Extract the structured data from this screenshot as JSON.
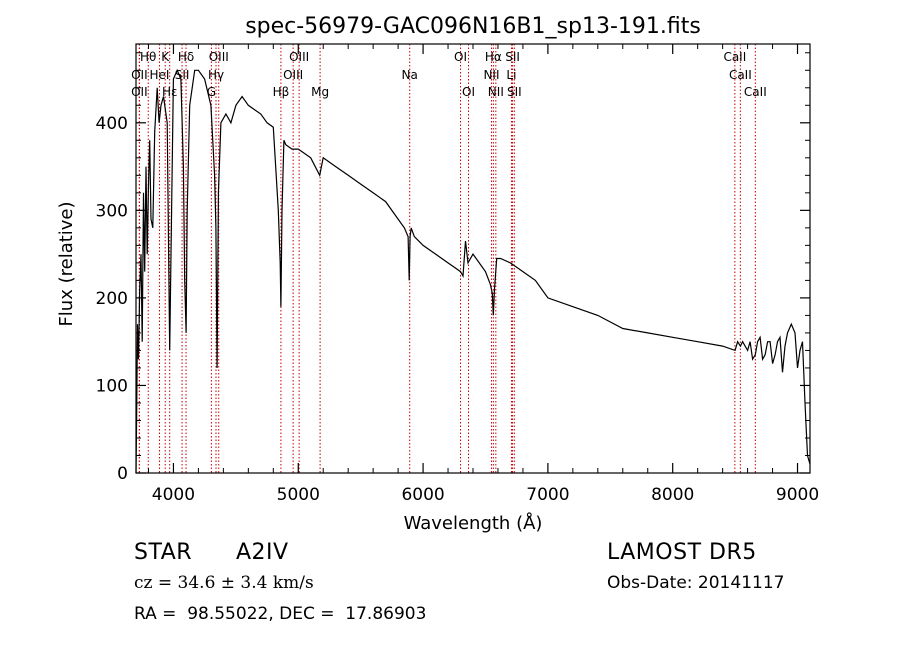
{
  "chart_data": {
    "type": "line",
    "title": "spec-56979-GAC096N16B1_sp13-191.fits",
    "xlabel": "Wavelength (Å)",
    "ylabel": "Flux (relative)",
    "xlim": [
      3700,
      9100
    ],
    "ylim": [
      0,
      490
    ],
    "x_ticks": [
      4000,
      5000,
      6000,
      7000,
      8000,
      9000
    ],
    "x_tick_labels": [
      "4000",
      "5000",
      "6000",
      "7000",
      "8000",
      "9000"
    ],
    "y_ticks": [
      0,
      100,
      200,
      300,
      400
    ],
    "y_tick_labels": [
      "0",
      "100",
      "200",
      "300",
      "400"
    ],
    "grid": false,
    "series": [
      {
        "x": [
          3700,
          3705,
          3712,
          3720,
          3730,
          3740,
          3750,
          3760,
          3770,
          3780,
          3790,
          3800,
          3810,
          3820,
          3835,
          3850,
          3870,
          3885,
          3900,
          3920,
          3950,
          3970,
          3985,
          4000,
          4030,
          4060,
          4080,
          4090,
          4101,
          4110,
          4130,
          4170,
          4200,
          4250,
          4300,
          4330,
          4340,
          4350,
          4360,
          4380,
          4420,
          4460,
          4500,
          4550,
          4600,
          4650,
          4700,
          4750,
          4800,
          4840,
          4855,
          4861,
          4870,
          4885,
          4900,
          4950,
          5000,
          5100,
          5172,
          5200,
          5300,
          5400,
          5500,
          5600,
          5700,
          5800,
          5850,
          5880,
          5889,
          5896,
          5905,
          5930,
          6000,
          6100,
          6200,
          6300,
          6320,
          6340,
          6360,
          6400,
          6500,
          6540,
          6555,
          6563,
          6572,
          6590,
          6620,
          6700,
          6800,
          6900,
          7000,
          7200,
          7400,
          7600,
          7800,
          8000,
          8200,
          8400,
          8500,
          8520,
          8542,
          8560,
          8600,
          8620,
          8640,
          8662,
          8680,
          8700,
          8720,
          8740,
          8760,
          8780,
          8800,
          8820,
          8840,
          8860,
          8880,
          8900,
          8920,
          8950,
          8980,
          9000,
          9020,
          9040,
          9060,
          9080,
          9100
        ],
        "y": [
          0,
          60,
          170,
          130,
          210,
          250,
          150,
          320,
          230,
          350,
          250,
          330,
          380,
          290,
          280,
          390,
          440,
          400,
          420,
          430,
          400,
          140,
          300,
          450,
          460,
          450,
          350,
          220,
          160,
          300,
          420,
          460,
          460,
          450,
          420,
          340,
          280,
          120,
          320,
          400,
          410,
          400,
          420,
          430,
          420,
          415,
          410,
          400,
          395,
          300,
          240,
          190,
          300,
          380,
          375,
          370,
          370,
          360,
          340,
          360,
          350,
          340,
          330,
          320,
          310,
          290,
          280,
          270,
          220,
          270,
          280,
          270,
          260,
          250,
          240,
          230,
          225,
          265,
          240,
          250,
          230,
          215,
          205,
          180,
          210,
          245,
          245,
          240,
          230,
          220,
          200,
          190,
          180,
          165,
          160,
          155,
          150,
          145,
          140,
          150,
          145,
          150,
          140,
          150,
          130,
          135,
          150,
          155,
          130,
          135,
          150,
          150,
          125,
          135,
          150,
          155,
          115,
          145,
          160,
          170,
          160,
          120,
          140,
          150,
          80,
          20,
          10
        ]
      }
    ],
    "line_markers": [
      {
        "label": "Hθ",
        "wavelength": 3798,
        "row": 0
      },
      {
        "label": "K",
        "wavelength": 3934,
        "row": 0
      },
      {
        "label": "Hδ",
        "wavelength": 4101,
        "row": 0
      },
      {
        "label": "OIII",
        "wavelength": 4363,
        "row": 0
      },
      {
        "label": "OIII",
        "wavelength": 5007,
        "row": 0
      },
      {
        "label": "OI",
        "wavelength": 6300,
        "row": 0
      },
      {
        "label": "Hα",
        "wavelength": 6563,
        "row": 0
      },
      {
        "label": "SII",
        "wavelength": 6717,
        "row": 0
      },
      {
        "label": "CaII",
        "wavelength": 8498,
        "row": 0
      },
      {
        "label": "OII",
        "wavelength": 3727,
        "row": 1
      },
      {
        "label": "HeI",
        "wavelength": 3888,
        "row": 1
      },
      {
        "label": "SII",
        "wavelength": 4069,
        "row": 1
      },
      {
        "label": "Hγ",
        "wavelength": 4341,
        "row": 1
      },
      {
        "label": "OIII",
        "wavelength": 4959,
        "row": 1
      },
      {
        "label": "Na",
        "wavelength": 5893,
        "row": 1
      },
      {
        "label": "NII",
        "wavelength": 6548,
        "row": 1
      },
      {
        "label": "Li",
        "wavelength": 6708,
        "row": 1
      },
      {
        "label": "CaII",
        "wavelength": 8542,
        "row": 1
      },
      {
        "label": "OII",
        "wavelength": 3727,
        "row": 2
      },
      {
        "label": "Hε",
        "wavelength": 3970,
        "row": 2
      },
      {
        "label": "G",
        "wavelength": 4304,
        "row": 2
      },
      {
        "label": "Hβ",
        "wavelength": 4861,
        "row": 2
      },
      {
        "label": "Mg",
        "wavelength": 5175,
        "row": 2
      },
      {
        "label": "OI",
        "wavelength": 6364,
        "row": 2
      },
      {
        "label": "NII",
        "wavelength": 6583,
        "row": 2
      },
      {
        "label": "SII",
        "wavelength": 6731,
        "row": 2
      },
      {
        "label": "CaII",
        "wavelength": 8662,
        "row": 2
      }
    ],
    "marker_color": "#cc0000",
    "line_color": "#000000"
  },
  "info": {
    "object_class": "STAR",
    "subclass": "A2IV",
    "survey": "LAMOST DR5",
    "cz": "cz = 34.6 ± 3.4 km/s",
    "obs_date": "Obs-Date: 20141117",
    "coords": "RA =  98.55022, DEC =  17.86903"
  }
}
